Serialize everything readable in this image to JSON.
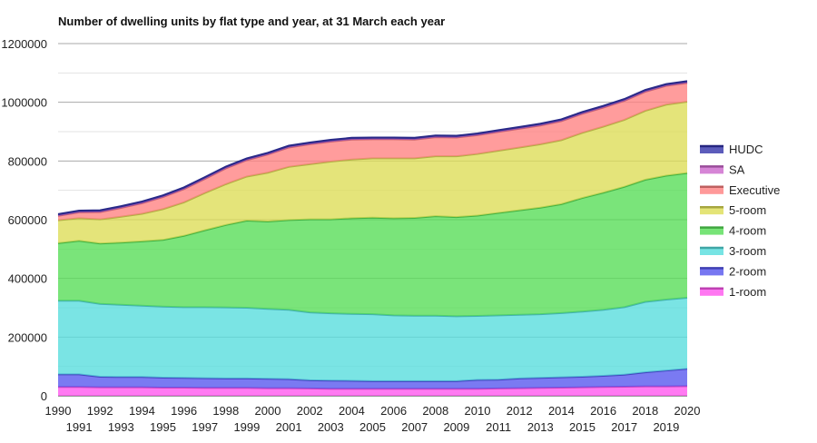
{
  "chart_data": {
    "type": "area",
    "stacked": true,
    "title": "Number of dwelling units by flat type and year, at 31 March each year",
    "xlabel": "",
    "ylabel": "",
    "ylim": [
      0,
      1200000
    ],
    "yticks": [
      0,
      200000,
      400000,
      600000,
      800000,
      1000000,
      1200000
    ],
    "ytick_labels": [
      "0",
      "200000",
      "400000",
      "600000",
      "800000",
      "1000000",
      "1200000"
    ],
    "grid": true,
    "legend_position": "right",
    "categories": [
      "1990",
      "1991",
      "1992",
      "1993",
      "1994",
      "1995",
      "1996",
      "1997",
      "1998",
      "1999",
      "2000",
      "2001",
      "2002",
      "2003",
      "2004",
      "2005",
      "2006",
      "2007",
      "2008",
      "2009",
      "2010",
      "2011",
      "2012",
      "2013",
      "2014",
      "2015",
      "2016",
      "2017",
      "2018",
      "2019",
      "2020"
    ],
    "series": [
      {
        "name": "1-room",
        "color": "#ff55ee",
        "values": [
          30000,
          30000,
          29000,
          29000,
          29000,
          28000,
          28000,
          27000,
          27000,
          27000,
          26000,
          26000,
          25000,
          24000,
          24000,
          24000,
          24000,
          24000,
          24000,
          24000,
          24000,
          25000,
          26000,
          27000,
          28000,
          29000,
          30000,
          31000,
          32000,
          32000,
          33000
        ]
      },
      {
        "name": "2-room",
        "color": "#5555ee",
        "values": [
          43000,
          43000,
          36000,
          35000,
          35000,
          34000,
          33000,
          33000,
          32000,
          32000,
          32000,
          31000,
          28000,
          28000,
          27000,
          26000,
          26000,
          26000,
          26000,
          26000,
          30000,
          30000,
          33000,
          34000,
          35000,
          36000,
          38000,
          41000,
          48000,
          54000,
          59000
        ]
      },
      {
        "name": "3-room",
        "color": "#55dddd",
        "values": [
          251000,
          251000,
          248000,
          246000,
          243000,
          242000,
          241000,
          242000,
          242000,
          241000,
          238000,
          236000,
          231000,
          229000,
          228000,
          228000,
          224000,
          223000,
          223000,
          221000,
          218000,
          219000,
          217000,
          217000,
          219000,
          222000,
          225000,
          230000,
          240000,
          242000,
          242000
        ]
      },
      {
        "name": "4-room",
        "color": "#55dd55",
        "values": [
          196000,
          204000,
          206000,
          212000,
          219000,
          227000,
          243000,
          262000,
          281000,
          297000,
          298000,
          306000,
          317000,
          320000,
          326000,
          329000,
          331000,
          333000,
          339000,
          338000,
          342000,
          349000,
          356000,
          363000,
          371000,
          387000,
          399000,
          410000,
          416000,
          422000,
          425000
        ]
      },
      {
        "name": "5-room",
        "color": "#dddd55",
        "values": [
          78000,
          77000,
          82000,
          88000,
          94000,
          105000,
          114000,
          127000,
          139000,
          150000,
          166000,
          181000,
          188000,
          197000,
          200000,
          202000,
          204000,
          203000,
          204000,
          207000,
          210000,
          212000,
          214000,
          216000,
          218000,
          222000,
          225000,
          228000,
          235000,
          242000,
          243000
        ]
      },
      {
        "name": "Executive",
        "color": "#ff8080",
        "values": [
          15000,
          20000,
          25000,
          30000,
          36000,
          41000,
          45000,
          48000,
          54000,
          56000,
          62000,
          66000,
          68000,
          68000,
          68000,
          65000,
          65000,
          64000,
          65000,
          64000,
          64000,
          64000,
          64000,
          64000,
          65000,
          65000,
          65000,
          65000,
          65000,
          64000,
          64000
        ]
      },
      {
        "name": "SA",
        "color": "#cc66cc",
        "values": [
          2000,
          2000,
          2000,
          2000,
          2000,
          2000,
          2000,
          2000,
          2000,
          2000,
          2000,
          2000,
          2000,
          2000,
          2000,
          2000,
          2000,
          2000,
          2000,
          2000,
          2000,
          2000,
          2000,
          2000,
          2000,
          2000,
          2000,
          2000,
          2000,
          2000,
          2000
        ]
      },
      {
        "name": "HUDC",
        "color": "#3333aa",
        "values": [
          4000,
          4000,
          4000,
          4000,
          4000,
          4000,
          4000,
          4000,
          4000,
          4000,
          4000,
          4000,
          4000,
          4000,
          4000,
          4000,
          4000,
          4000,
          4000,
          4000,
          4000,
          4000,
          4000,
          4000,
          4000,
          4000,
          4000,
          4000,
          4000,
          4000,
          4000
        ]
      }
    ],
    "legend_order": [
      "HUDC",
      "SA",
      "Executive",
      "5-room",
      "4-room",
      "3-room",
      "2-room",
      "1-room"
    ]
  }
}
